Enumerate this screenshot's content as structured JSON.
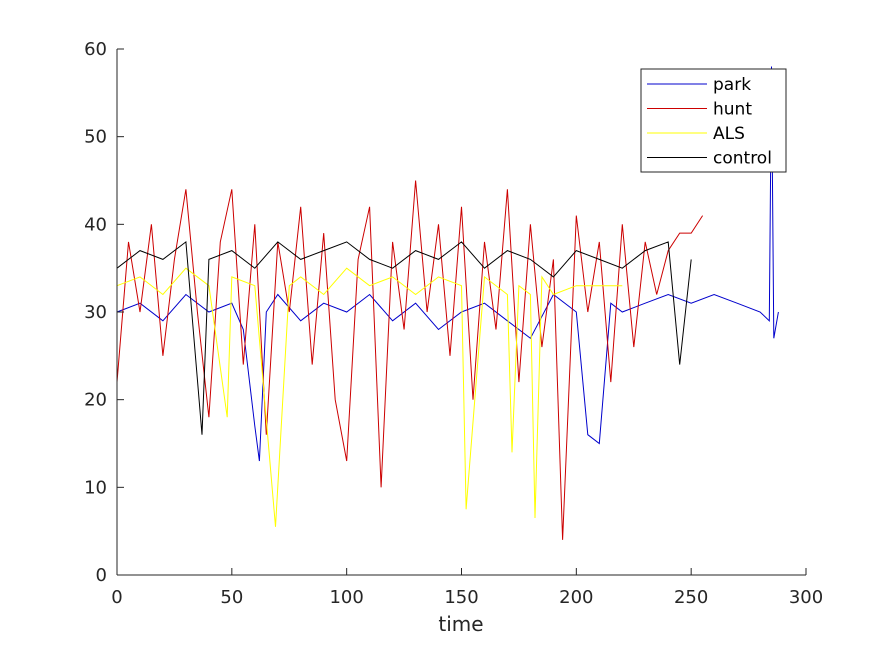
{
  "chart_data": {
    "type": "line",
    "title": "",
    "xlabel": "time",
    "ylabel": "",
    "xlim": [
      0,
      300
    ],
    "ylim": [
      0,
      60
    ],
    "xticks": [
      "0",
      "50",
      "100",
      "150",
      "200",
      "250",
      "300"
    ],
    "yticks": [
      "0",
      "10",
      "20",
      "30",
      "40",
      "50",
      "60"
    ],
    "grid": false,
    "legend_position": "top-right",
    "legend": [
      {
        "label": "park",
        "color": "#0000cc"
      },
      {
        "label": "hunt",
        "color": "#cc0000"
      },
      {
        "label": "ALS",
        "color": "#ffff00"
      },
      {
        "label": "control",
        "color": "#000000"
      }
    ],
    "series": [
      {
        "name": "park",
        "color": "#0000cc",
        "x": [
          0,
          10,
          20,
          30,
          40,
          50,
          55,
          60,
          62,
          65,
          70,
          80,
          90,
          100,
          110,
          120,
          130,
          140,
          150,
          160,
          170,
          180,
          190,
          200,
          205,
          210,
          215,
          220,
          230,
          240,
          250,
          260,
          270,
          280,
          284,
          285,
          286,
          288
        ],
        "y": [
          30,
          31,
          29,
          32,
          30,
          31,
          28,
          17,
          13,
          30,
          32,
          29,
          31,
          30,
          32,
          29,
          31,
          28,
          30,
          31,
          29,
          27,
          32,
          30,
          16,
          15,
          31,
          30,
          31,
          32,
          31,
          32,
          31,
          30,
          29,
          58,
          27,
          30
        ]
      },
      {
        "name": "hunt",
        "color": "#cc0000",
        "x": [
          0,
          5,
          10,
          15,
          20,
          25,
          30,
          35,
          40,
          45,
          50,
          55,
          60,
          65,
          70,
          75,
          80,
          85,
          90,
          95,
          100,
          105,
          110,
          115,
          120,
          125,
          130,
          135,
          140,
          145,
          150,
          155,
          160,
          165,
          170,
          175,
          180,
          185,
          190,
          194,
          200,
          205,
          210,
          215,
          220,
          225,
          230,
          235,
          240,
          245,
          250,
          255
        ],
        "y": [
          22,
          38,
          30,
          40,
          25,
          36,
          44,
          30,
          18,
          38,
          44,
          24,
          40,
          16,
          38,
          30,
          42,
          24,
          39,
          20,
          13,
          36,
          42,
          10,
          38,
          28,
          45,
          30,
          40,
          25,
          42,
          20,
          38,
          28,
          44,
          22,
          40,
          26,
          36,
          4,
          41,
          30,
          38,
          22,
          40,
          26,
          38,
          32,
          37,
          39,
          39,
          41
        ]
      },
      {
        "name": "ALS",
        "color": "#ffff00",
        "x": [
          0,
          10,
          20,
          30,
          40,
          48,
          50,
          60,
          69,
          75,
          80,
          90,
          100,
          110,
          120,
          130,
          140,
          150,
          152,
          160,
          170,
          172,
          175,
          180,
          182,
          185,
          190,
          200,
          210,
          220
        ],
        "y": [
          33,
          34,
          32,
          35,
          33,
          18,
          34,
          33,
          5.5,
          33,
          34,
          32,
          35,
          33,
          34,
          32,
          34,
          33,
          7.5,
          34,
          32,
          14,
          33,
          32,
          6.5,
          34,
          32,
          33,
          33,
          33
        ]
      },
      {
        "name": "control",
        "color": "#000000",
        "x": [
          0,
          10,
          20,
          30,
          37,
          40,
          50,
          60,
          70,
          80,
          90,
          100,
          110,
          120,
          130,
          140,
          150,
          160,
          170,
          180,
          190,
          200,
          210,
          220,
          230,
          240,
          245,
          250
        ],
        "y": [
          35,
          37,
          36,
          38,
          16,
          36,
          37,
          35,
          38,
          36,
          37,
          38,
          36,
          35,
          37,
          36,
          38,
          35,
          37,
          36,
          34,
          37,
          36,
          35,
          37,
          38,
          24,
          36
        ]
      }
    ]
  }
}
